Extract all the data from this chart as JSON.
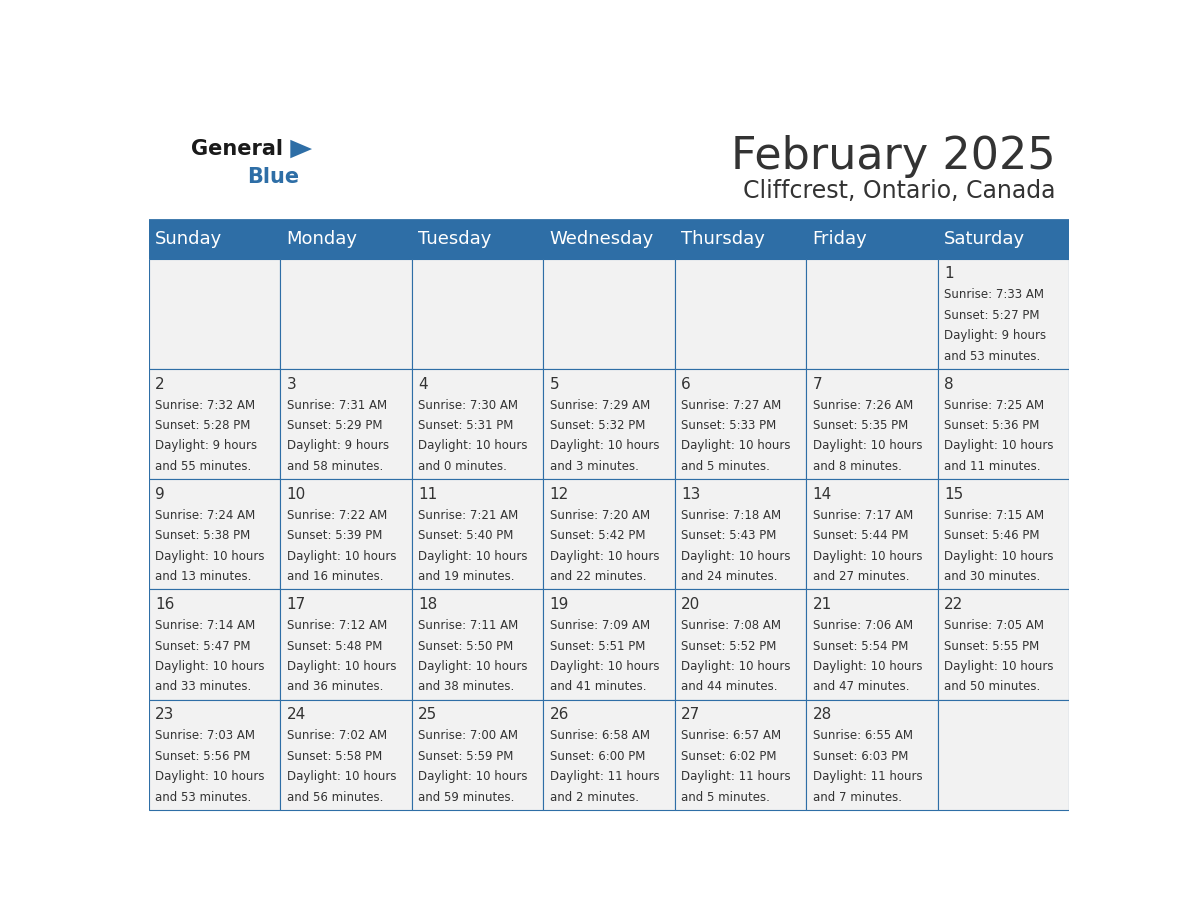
{
  "title": "February 2025",
  "subtitle": "Cliffcrest, Ontario, Canada",
  "header_bg": "#2E6EA6",
  "header_text": "#FFFFFF",
  "cell_bg": "#F2F2F2",
  "grid_line_color": "#2E6EA6",
  "day_headers": [
    "Sunday",
    "Monday",
    "Tuesday",
    "Wednesday",
    "Thursday",
    "Friday",
    "Saturday"
  ],
  "days": [
    {
      "day": 1,
      "col": 6,
      "row": 0,
      "sunrise": "7:33 AM",
      "sunset": "5:27 PM",
      "daylight": "9 hours and 53 minutes."
    },
    {
      "day": 2,
      "col": 0,
      "row": 1,
      "sunrise": "7:32 AM",
      "sunset": "5:28 PM",
      "daylight": "9 hours and 55 minutes."
    },
    {
      "day": 3,
      "col": 1,
      "row": 1,
      "sunrise": "7:31 AM",
      "sunset": "5:29 PM",
      "daylight": "9 hours and 58 minutes."
    },
    {
      "day": 4,
      "col": 2,
      "row": 1,
      "sunrise": "7:30 AM",
      "sunset": "5:31 PM",
      "daylight": "10 hours and 0 minutes."
    },
    {
      "day": 5,
      "col": 3,
      "row": 1,
      "sunrise": "7:29 AM",
      "sunset": "5:32 PM",
      "daylight": "10 hours and 3 minutes."
    },
    {
      "day": 6,
      "col": 4,
      "row": 1,
      "sunrise": "7:27 AM",
      "sunset": "5:33 PM",
      "daylight": "10 hours and 5 minutes."
    },
    {
      "day": 7,
      "col": 5,
      "row": 1,
      "sunrise": "7:26 AM",
      "sunset": "5:35 PM",
      "daylight": "10 hours and 8 minutes."
    },
    {
      "day": 8,
      "col": 6,
      "row": 1,
      "sunrise": "7:25 AM",
      "sunset": "5:36 PM",
      "daylight": "10 hours and 11 minutes."
    },
    {
      "day": 9,
      "col": 0,
      "row": 2,
      "sunrise": "7:24 AM",
      "sunset": "5:38 PM",
      "daylight": "10 hours and 13 minutes."
    },
    {
      "day": 10,
      "col": 1,
      "row": 2,
      "sunrise": "7:22 AM",
      "sunset": "5:39 PM",
      "daylight": "10 hours and 16 minutes."
    },
    {
      "day": 11,
      "col": 2,
      "row": 2,
      "sunrise": "7:21 AM",
      "sunset": "5:40 PM",
      "daylight": "10 hours and 19 minutes."
    },
    {
      "day": 12,
      "col": 3,
      "row": 2,
      "sunrise": "7:20 AM",
      "sunset": "5:42 PM",
      "daylight": "10 hours and 22 minutes."
    },
    {
      "day": 13,
      "col": 4,
      "row": 2,
      "sunrise": "7:18 AM",
      "sunset": "5:43 PM",
      "daylight": "10 hours and 24 minutes."
    },
    {
      "day": 14,
      "col": 5,
      "row": 2,
      "sunrise": "7:17 AM",
      "sunset": "5:44 PM",
      "daylight": "10 hours and 27 minutes."
    },
    {
      "day": 15,
      "col": 6,
      "row": 2,
      "sunrise": "7:15 AM",
      "sunset": "5:46 PM",
      "daylight": "10 hours and 30 minutes."
    },
    {
      "day": 16,
      "col": 0,
      "row": 3,
      "sunrise": "7:14 AM",
      "sunset": "5:47 PM",
      "daylight": "10 hours and 33 minutes."
    },
    {
      "day": 17,
      "col": 1,
      "row": 3,
      "sunrise": "7:12 AM",
      "sunset": "5:48 PM",
      "daylight": "10 hours and 36 minutes."
    },
    {
      "day": 18,
      "col": 2,
      "row": 3,
      "sunrise": "7:11 AM",
      "sunset": "5:50 PM",
      "daylight": "10 hours and 38 minutes."
    },
    {
      "day": 19,
      "col": 3,
      "row": 3,
      "sunrise": "7:09 AM",
      "sunset": "5:51 PM",
      "daylight": "10 hours and 41 minutes."
    },
    {
      "day": 20,
      "col": 4,
      "row": 3,
      "sunrise": "7:08 AM",
      "sunset": "5:52 PM",
      "daylight": "10 hours and 44 minutes."
    },
    {
      "day": 21,
      "col": 5,
      "row": 3,
      "sunrise": "7:06 AM",
      "sunset": "5:54 PM",
      "daylight": "10 hours and 47 minutes."
    },
    {
      "day": 22,
      "col": 6,
      "row": 3,
      "sunrise": "7:05 AM",
      "sunset": "5:55 PM",
      "daylight": "10 hours and 50 minutes."
    },
    {
      "day": 23,
      "col": 0,
      "row": 4,
      "sunrise": "7:03 AM",
      "sunset": "5:56 PM",
      "daylight": "10 hours and 53 minutes."
    },
    {
      "day": 24,
      "col": 1,
      "row": 4,
      "sunrise": "7:02 AM",
      "sunset": "5:58 PM",
      "daylight": "10 hours and 56 minutes."
    },
    {
      "day": 25,
      "col": 2,
      "row": 4,
      "sunrise": "7:00 AM",
      "sunset": "5:59 PM",
      "daylight": "10 hours and 59 minutes."
    },
    {
      "day": 26,
      "col": 3,
      "row": 4,
      "sunrise": "6:58 AM",
      "sunset": "6:00 PM",
      "daylight": "11 hours and 2 minutes."
    },
    {
      "day": 27,
      "col": 4,
      "row": 4,
      "sunrise": "6:57 AM",
      "sunset": "6:02 PM",
      "daylight": "11 hours and 5 minutes."
    },
    {
      "day": 28,
      "col": 5,
      "row": 4,
      "sunrise": "6:55 AM",
      "sunset": "6:03 PM",
      "daylight": "11 hours and 7 minutes."
    }
  ],
  "num_rows": 5,
  "num_cols": 7,
  "title_fontsize": 32,
  "subtitle_fontsize": 17,
  "header_fontsize": 13,
  "day_num_fontsize": 11,
  "cell_text_fontsize": 8.5,
  "text_color": "#333333",
  "logo_general_color": "#1A1A1A",
  "logo_blue_color": "#2E6EA6"
}
